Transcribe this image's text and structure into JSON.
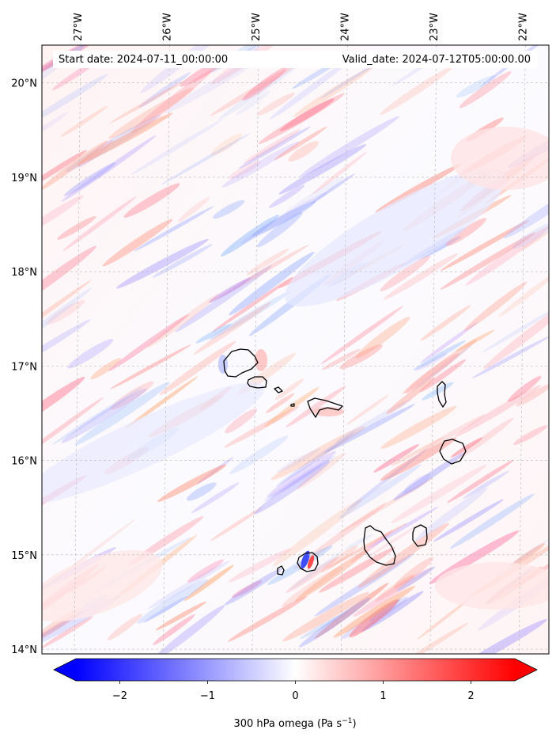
{
  "header": {
    "start_date": "Start date: 2024-07-11_00:00:00",
    "valid_date": "Valid_date: 2024-07-12T05:00:00.00"
  },
  "axes": {
    "lon_ticks": [
      "27°W",
      "26°W",
      "25°W",
      "24°W",
      "23°W",
      "22°W"
    ],
    "lat_ticks": [
      "20°N",
      "19°N",
      "18°N",
      "17°N",
      "16°N",
      "15°N",
      "14°N"
    ],
    "lon_values": [
      -27,
      -26,
      -25,
      -24,
      -23,
      -22
    ],
    "lat_values": [
      20,
      19,
      18,
      17,
      16,
      15,
      14
    ],
    "lon_range": [
      -27.4,
      -21.7
    ],
    "lat_range": [
      13.95,
      20.4
    ],
    "gridlines": true
  },
  "colorbar": {
    "ticks": [
      "−2",
      "−1",
      "0",
      "1",
      "2"
    ],
    "tick_values": [
      -2,
      -1,
      0,
      1,
      2
    ],
    "range": [
      -2.5,
      2.5
    ],
    "extend": "both",
    "colormap": "bwr",
    "label_main": "300 hPa omega (Pa s",
    "label_sup": "−1",
    "label_end": ")"
  },
  "colors": {
    "negative": "#0000ff",
    "zero": "#ffffff",
    "positive": "#ff0000",
    "coastline": "#000000",
    "grid": "#b0b0b0"
  }
}
